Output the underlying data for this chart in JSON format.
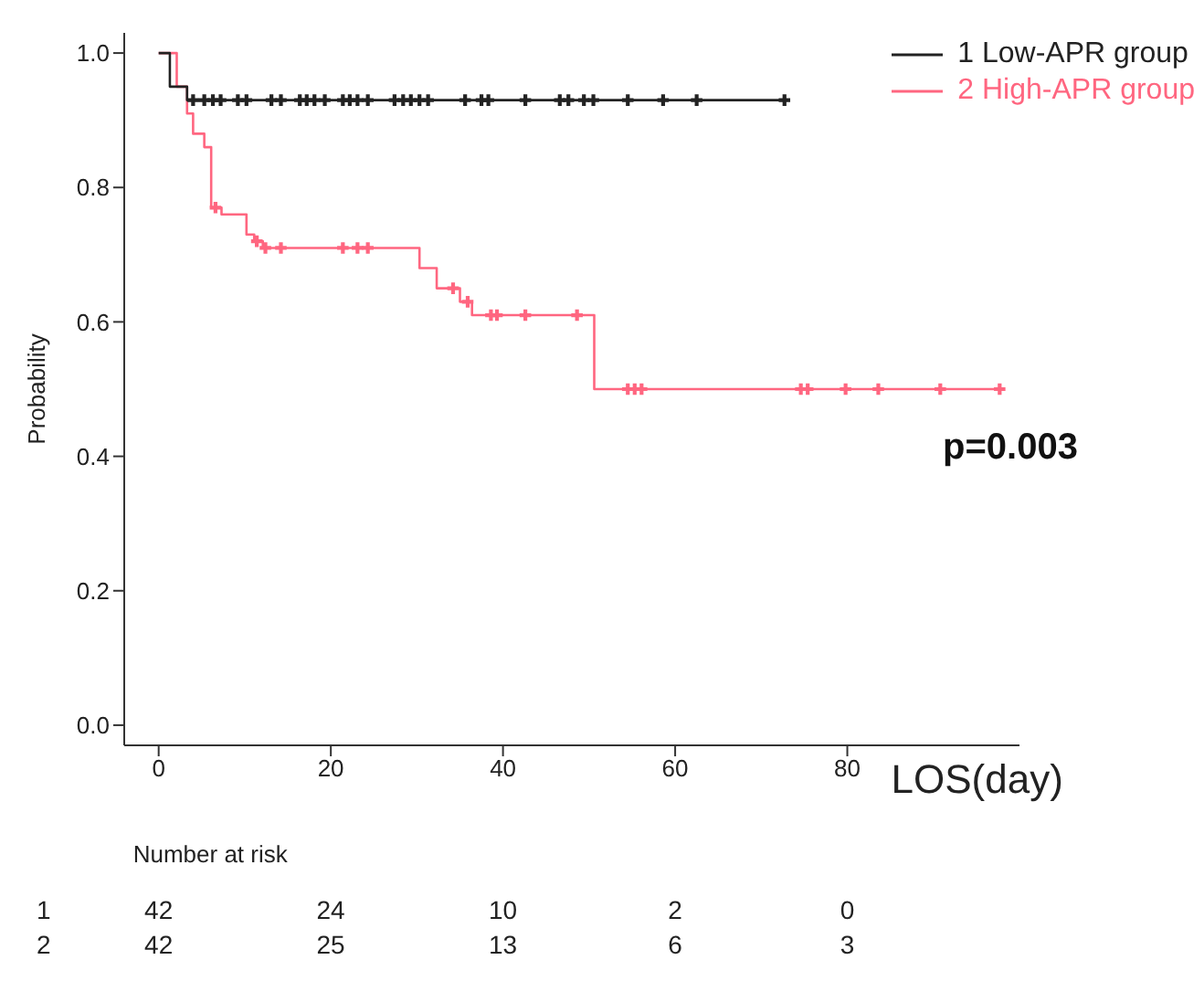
{
  "chart_data": {
    "type": "step",
    "xlabel": "LOS(day)",
    "ylabel": "Probability",
    "xlim": [
      -4,
      100
    ],
    "xticks": [
      0,
      20,
      40,
      60,
      80
    ],
    "ylim": [
      -0.03,
      1.03
    ],
    "yticks": [
      {
        "value": 0,
        "label": "0.0"
      },
      {
        "value": 0.2,
        "label": "0.2"
      },
      {
        "value": 0.4,
        "label": "0.4"
      },
      {
        "value": 0.6,
        "label": "0.6"
      },
      {
        "value": 0.8,
        "label": "0.8"
      },
      {
        "value": 1,
        "label": "1.0"
      }
    ],
    "grid": false,
    "legend": "top right",
    "line_style": "solid",
    "series": [
      {
        "name": "1 Low-APR group",
        "color": "#222222",
        "x": [
          0,
          1.3,
          3.3,
          72.7
        ],
        "values": [
          1.0,
          0.95,
          0.93,
          0.93
        ]
      },
      {
        "name": "2 High-APR group",
        "color": "#ff6680",
        "x": [
          0,
          2.1,
          3.3,
          4.0,
          5.3,
          6.1,
          7.3,
          10.2,
          11.1,
          12.1,
          30.3,
          32.3,
          35.0,
          36.4,
          50.6,
          97.7
        ],
        "values": [
          1.0,
          0.95,
          0.91,
          0.88,
          0.86,
          0.77,
          0.76,
          0.73,
          0.72,
          0.71,
          0.68,
          0.65,
          0.63,
          0.61,
          0.5,
          0.5
        ]
      },
      {
        "type": "scatter",
        "marker": "cross",
        "color": "#222222",
        "x": [
          4.0,
          5.3,
          6.3,
          7.2,
          9.2,
          10.2,
          13.1,
          14.2,
          16.4,
          17.2,
          18.1,
          19.3,
          21.4,
          22.2,
          23.1,
          24.3,
          27.4,
          28.4,
          29.3,
          30.3,
          31.3,
          35.6,
          37.5,
          38.3,
          42.6,
          46.6,
          47.6,
          49.4,
          50.5,
          54.5,
          58.6,
          62.5,
          72.7
        ],
        "values": [
          0.93,
          0.93,
          0.93,
          0.93,
          0.93,
          0.93,
          0.93,
          0.93,
          0.93,
          0.93,
          0.93,
          0.93,
          0.93,
          0.93,
          0.93,
          0.93,
          0.93,
          0.93,
          0.93,
          0.93,
          0.93,
          0.93,
          0.93,
          0.93,
          0.93,
          0.93,
          0.93,
          0.93,
          0.93,
          0.93,
          0.93,
          0.93,
          0.93
        ]
      },
      {
        "type": "scatter",
        "marker": "cross",
        "color": "#ff6680",
        "x": [
          6.6,
          11.4,
          12.4,
          14.2,
          21.4,
          23.1,
          24.3,
          34.2,
          35.9,
          38.6,
          39.3,
          42.6,
          48.6,
          54.5,
          55.3,
          56.1,
          74.6,
          75.4,
          79.8,
          83.6,
          90.8,
          97.7
        ],
        "values": [
          0.77,
          0.72,
          0.71,
          0.71,
          0.71,
          0.71,
          0.71,
          0.65,
          0.63,
          0.61,
          0.61,
          0.61,
          0.61,
          0.5,
          0.5,
          0.5,
          0.5,
          0.5,
          0.5,
          0.5,
          0.5,
          0.5
        ]
      }
    ],
    "annotations": [
      "p=0.003",
      "Number at risk",
      "1 42 24 10 2 0",
      "2 42 25 13 6 3"
    ]
  }
}
